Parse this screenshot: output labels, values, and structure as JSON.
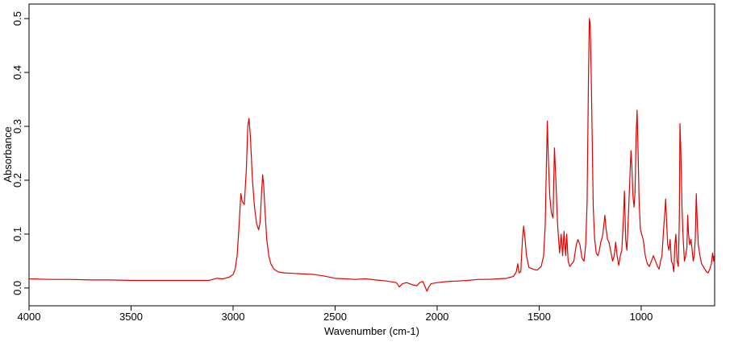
{
  "chart_data": {
    "type": "line",
    "x_label": "Wavenumber (cm-1)",
    "y_label": "Absorbance",
    "x": [
      4000,
      3900,
      3800,
      3700,
      3600,
      3500,
      3400,
      3300,
      3200,
      3120,
      3080,
      3050,
      3020,
      3000,
      2990,
      2980,
      2970,
      2962,
      2955,
      2945,
      2935,
      2928,
      2922,
      2915,
      2905,
      2895,
      2885,
      2875,
      2868,
      2860,
      2855,
      2850,
      2843,
      2835,
      2825,
      2815,
      2800,
      2780,
      2750,
      2700,
      2650,
      2600,
      2550,
      2500,
      2450,
      2400,
      2350,
      2300,
      2250,
      2200,
      2185,
      2170,
      2150,
      2120,
      2100,
      2085,
      2070,
      2060,
      2050,
      2040,
      2030,
      2000,
      1950,
      1900,
      1850,
      1800,
      1750,
      1700,
      1660,
      1640,
      1625,
      1612,
      1605,
      1598,
      1590,
      1582,
      1576,
      1570,
      1562,
      1550,
      1530,
      1510,
      1490,
      1478,
      1470,
      1465,
      1460,
      1455,
      1448,
      1440,
      1432,
      1425,
      1418,
      1410,
      1400,
      1392,
      1385,
      1378,
      1370,
      1365,
      1358,
      1350,
      1340,
      1330,
      1318,
      1310,
      1300,
      1290,
      1280,
      1272,
      1265,
      1258,
      1254,
      1250,
      1245,
      1240,
      1235,
      1228,
      1220,
      1212,
      1205,
      1198,
      1190,
      1182,
      1178,
      1172,
      1165,
      1158,
      1150,
      1140,
      1132,
      1125,
      1118,
      1110,
      1102,
      1095,
      1088,
      1082,
      1076,
      1070,
      1063,
      1056,
      1050,
      1045,
      1040,
      1035,
      1030,
      1025,
      1020,
      1015,
      1010,
      1004,
      998,
      990,
      980,
      970,
      960,
      950,
      940,
      930,
      920,
      912,
      905,
      898,
      890,
      884,
      880,
      875,
      870,
      864,
      858,
      852,
      846,
      840,
      835,
      830,
      824,
      818,
      813,
      810,
      806,
      800,
      794,
      788,
      782,
      776,
      772,
      768,
      762,
      756,
      750,
      745,
      740,
      735,
      730,
      725,
      720,
      712,
      704,
      696,
      688,
      680,
      672,
      664,
      656,
      650,
      645,
      642
    ],
    "series": [
      {
        "color": "#e00000",
        "values": [
          0.017,
          0.016,
          0.016,
          0.015,
          0.015,
          0.014,
          0.014,
          0.014,
          0.014,
          0.014,
          0.018,
          0.017,
          0.02,
          0.025,
          0.035,
          0.06,
          0.12,
          0.175,
          0.16,
          0.155,
          0.22,
          0.3,
          0.315,
          0.28,
          0.2,
          0.15,
          0.12,
          0.108,
          0.12,
          0.18,
          0.21,
          0.19,
          0.14,
          0.09,
          0.06,
          0.045,
          0.035,
          0.03,
          0.028,
          0.027,
          0.026,
          0.025,
          0.022,
          0.018,
          0.017,
          0.016,
          0.017,
          0.015,
          0.013,
          0.01,
          0.002,
          0.008,
          0.01,
          0.006,
          0.004,
          0.01,
          0.012,
          0.003,
          -0.006,
          0.002,
          0.008,
          0.01,
          0.012,
          0.013,
          0.014,
          0.016,
          0.016,
          0.017,
          0.018,
          0.02,
          0.022,
          0.03,
          0.045,
          0.028,
          0.03,
          0.09,
          0.115,
          0.095,
          0.06,
          0.038,
          0.035,
          0.033,
          0.04,
          0.06,
          0.12,
          0.22,
          0.31,
          0.24,
          0.17,
          0.14,
          0.13,
          0.26,
          0.2,
          0.12,
          0.065,
          0.1,
          0.06,
          0.105,
          0.06,
          0.1,
          0.05,
          0.04,
          0.045,
          0.05,
          0.08,
          0.09,
          0.08,
          0.055,
          0.05,
          0.08,
          0.16,
          0.4,
          0.5,
          0.49,
          0.4,
          0.28,
          0.15,
          0.09,
          0.065,
          0.06,
          0.07,
          0.085,
          0.095,
          0.12,
          0.135,
          0.11,
          0.09,
          0.085,
          0.07,
          0.05,
          0.06,
          0.085,
          0.06,
          0.042,
          0.06,
          0.07,
          0.12,
          0.18,
          0.09,
          0.07,
          0.13,
          0.2,
          0.255,
          0.22,
          0.17,
          0.15,
          0.18,
          0.28,
          0.33,
          0.25,
          0.16,
          0.11,
          0.1,
          0.09,
          0.06,
          0.045,
          0.04,
          0.05,
          0.06,
          0.05,
          0.04,
          0.035,
          0.05,
          0.06,
          0.11,
          0.14,
          0.165,
          0.12,
          0.08,
          0.07,
          0.09,
          0.05,
          0.045,
          0.03,
          0.08,
          0.1,
          0.05,
          0.04,
          0.13,
          0.305,
          0.26,
          0.15,
          0.09,
          0.05,
          0.06,
          0.075,
          0.135,
          0.1,
          0.08,
          0.09,
          0.07,
          0.05,
          0.06,
          0.09,
          0.175,
          0.12,
          0.08,
          0.06,
          0.045,
          0.04,
          0.035,
          0.03,
          0.028,
          0.035,
          0.045,
          0.065,
          0.05,
          0.06
        ]
      }
    ],
    "xlim": [
      4000,
      640
    ],
    "ylim": [
      -0.033,
      0.527
    ],
    "xticks": [
      4000,
      3500,
      3000,
      2500,
      2000,
      1500,
      1000
    ],
    "yticks": [
      {
        "value": 0,
        "label": "0.0"
      },
      {
        "value": 0.1,
        "label": "0.1"
      },
      {
        "value": 0.2,
        "label": "0.2"
      },
      {
        "value": 0.3,
        "label": "0.3"
      },
      {
        "value": 0.4,
        "label": "0.4"
      },
      {
        "value": 0.5,
        "label": "0.5"
      }
    ]
  }
}
